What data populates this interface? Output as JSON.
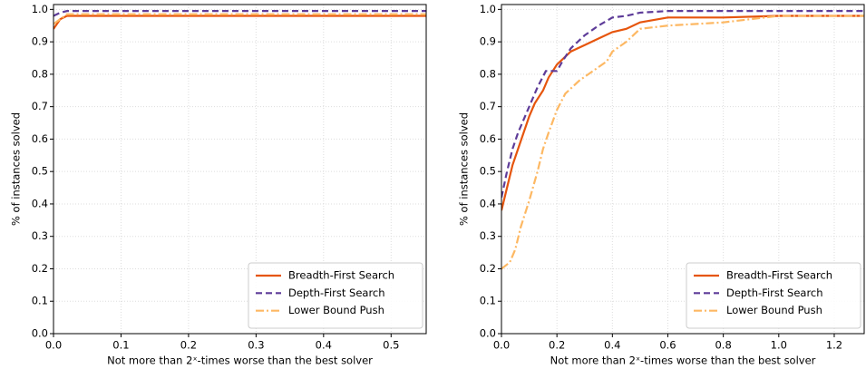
{
  "chart_data": [
    {
      "type": "line",
      "xlabel": "Not more than 2ˣ-times worse than the best solver",
      "ylabel": "% of instances solved",
      "xlim": [
        0,
        0.552
      ],
      "ylim": [
        0,
        1.015
      ],
      "xticks": [
        {
          "value": 0,
          "label": "0.0"
        },
        0.1,
        0.2,
        0.3,
        0.4,
        0.5
      ],
      "yticks": [
        {
          "value": 0,
          "label": "0.0"
        },
        0.1,
        0.2,
        0.3,
        0.4,
        0.5,
        0.6,
        0.7,
        0.8,
        0.9,
        {
          "value": 1,
          "label": "1.0"
        }
      ],
      "grid": true,
      "legend": "lower right",
      "series": [
        {
          "name": "Breadth-First Search",
          "color": "#e6550d",
          "linestyle": "solid",
          "x": [
            0,
            0.005,
            0.01,
            0.02,
            0.552
          ],
          "values": [
            0.94,
            0.955,
            0.97,
            0.98,
            0.98
          ]
        },
        {
          "name": "Depth-First Search",
          "color": "#5e3c99",
          "linestyle": "dashed",
          "x": [
            0,
            0.01,
            0.02,
            0.552
          ],
          "values": [
            0.98,
            0.99,
            0.995,
            0.995
          ]
        },
        {
          "name": "Lower Bound Push",
          "color": "#fdb863",
          "linestyle": "dashdot",
          "x": [
            0,
            0.01,
            0.02,
            0.552
          ],
          "values": [
            0.955,
            0.97,
            0.985,
            0.985
          ]
        }
      ]
    },
    {
      "type": "line",
      "xlabel": "Not more than 2ˣ-times worse than the best solver",
      "ylabel": "% of instances solved",
      "xlim": [
        0,
        1.308
      ],
      "ylim": [
        0,
        1.015
      ],
      "xticks": [
        {
          "value": 0,
          "label": "0.0"
        },
        0.2,
        0.4,
        0.6,
        0.8,
        {
          "value": 1,
          "label": "1.0"
        },
        1.2
      ],
      "yticks": [
        {
          "value": 0,
          "label": "0.0"
        },
        0.1,
        0.2,
        0.3,
        0.4,
        0.5,
        0.6,
        0.7,
        0.8,
        0.9,
        {
          "value": 1,
          "label": "1.0"
        }
      ],
      "grid": true,
      "legend": "lower right",
      "series": [
        {
          "name": "Breadth-First Search",
          "color": "#e6550d",
          "linestyle": "solid",
          "x": [
            0,
            0.02,
            0.04,
            0.06,
            0.08,
            0.1,
            0.12,
            0.15,
            0.17,
            0.2,
            0.25,
            0.3,
            0.35,
            0.4,
            0.45,
            0.5,
            0.6,
            0.8,
            1.0,
            1.308
          ],
          "values": [
            0.38,
            0.45,
            0.52,
            0.57,
            0.62,
            0.67,
            0.71,
            0.75,
            0.79,
            0.83,
            0.87,
            0.89,
            0.91,
            0.93,
            0.94,
            0.96,
            0.975,
            0.975,
            0.98,
            0.98
          ]
        },
        {
          "name": "Depth-First Search",
          "color": "#5e3c99",
          "linestyle": "dashed",
          "x": [
            0,
            0.02,
            0.04,
            0.06,
            0.1,
            0.13,
            0.16,
            0.2,
            0.22,
            0.25,
            0.3,
            0.35,
            0.4,
            0.45,
            0.5,
            0.6,
            1.308
          ],
          "values": [
            0.42,
            0.5,
            0.57,
            0.62,
            0.7,
            0.76,
            0.81,
            0.81,
            0.84,
            0.88,
            0.92,
            0.95,
            0.975,
            0.98,
            0.99,
            0.995,
            0.995
          ]
        },
        {
          "name": "Lower Bound Push",
          "color": "#fdb863",
          "linestyle": "dashdot",
          "x": [
            0,
            0.03,
            0.05,
            0.07,
            0.1,
            0.13,
            0.15,
            0.17,
            0.2,
            0.23,
            0.28,
            0.33,
            0.38,
            0.4,
            0.45,
            0.5,
            0.6,
            0.8,
            1.0,
            1.308
          ],
          "values": [
            0.2,
            0.22,
            0.26,
            0.33,
            0.41,
            0.5,
            0.57,
            0.62,
            0.69,
            0.74,
            0.78,
            0.81,
            0.84,
            0.87,
            0.9,
            0.94,
            0.95,
            0.96,
            0.98,
            0.98
          ]
        }
      ]
    }
  ]
}
